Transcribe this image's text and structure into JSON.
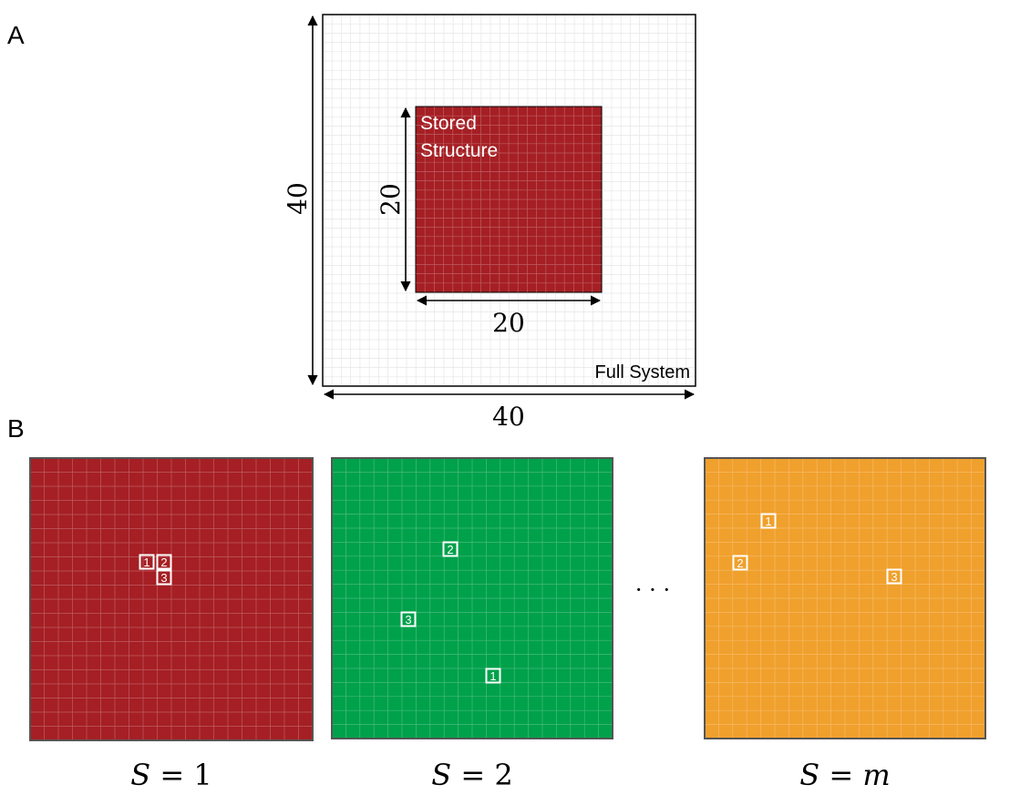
{
  "panel_a": {
    "label": "A",
    "full_system_label": "Full System",
    "stored_structure_label_line1": "Stored",
    "stored_structure_label_line2": "Structure",
    "outer_width": "40",
    "outer_height": "40",
    "inner_width": "20",
    "inner_height": "20",
    "colors": {
      "stored": "#a51f24",
      "grid_line": "#e6e6e6",
      "border": "#000000"
    }
  },
  "panel_b": {
    "label": "B",
    "ellipsis": "· · ·",
    "panels": [
      {
        "caption_var": "S",
        "caption_eq": "=",
        "caption_val": "1",
        "color": "#a51f24",
        "markers": [
          "1",
          "2",
          "3"
        ]
      },
      {
        "caption_var": "S",
        "caption_eq": "=",
        "caption_val": "2",
        "color": "#00a14b",
        "markers": [
          "1",
          "2",
          "3"
        ]
      },
      {
        "caption_var": "S",
        "caption_eq": "=",
        "caption_val": "m",
        "color": "#f0a02c",
        "markers": [
          "1",
          "2",
          "3"
        ]
      }
    ]
  }
}
